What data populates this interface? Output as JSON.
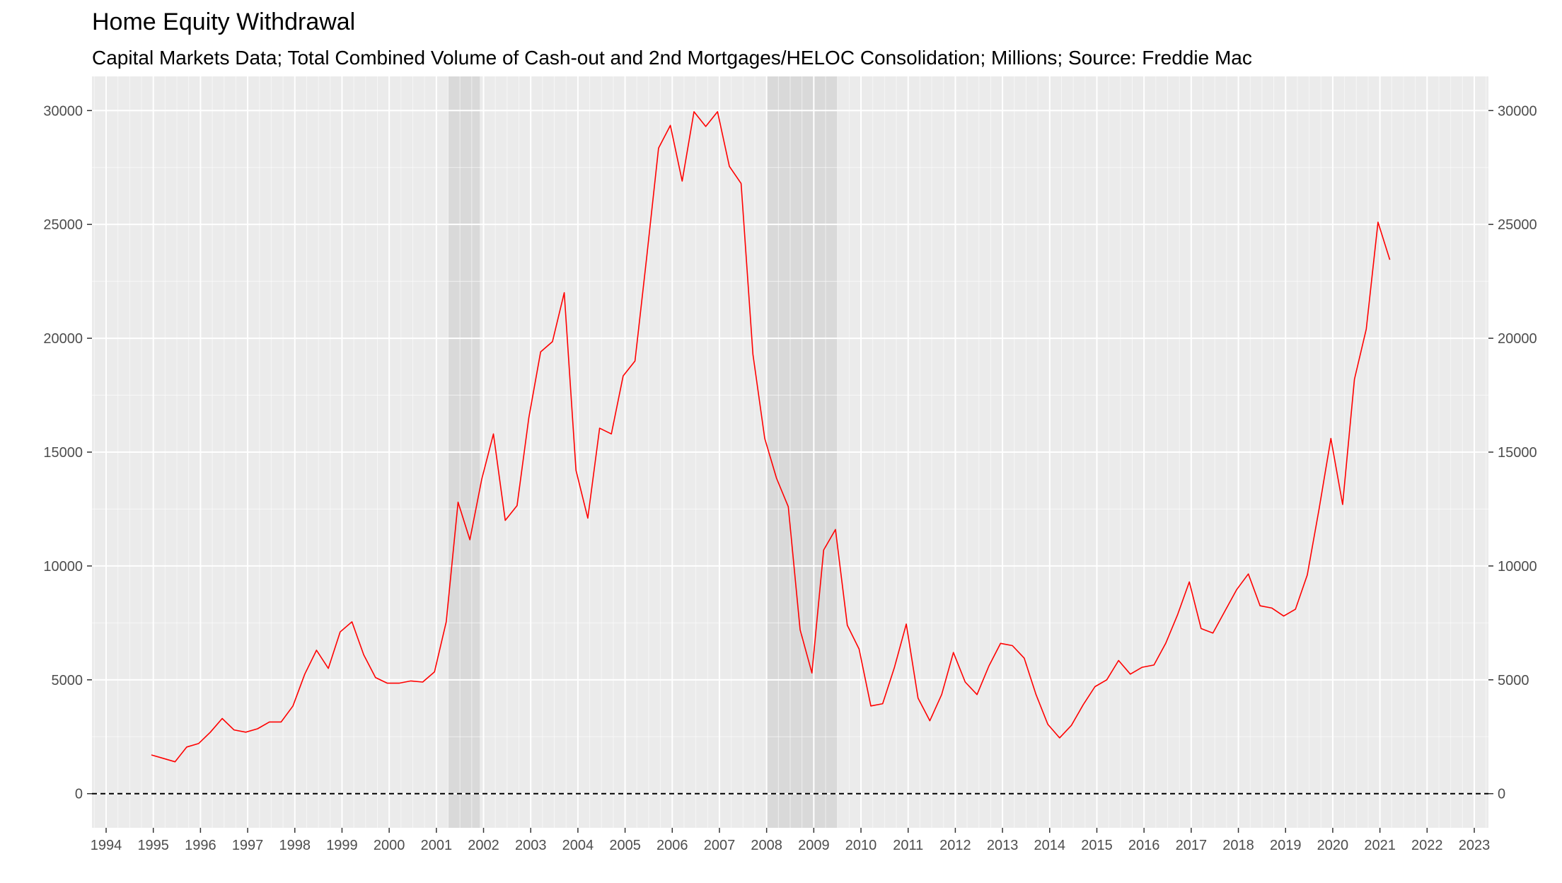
{
  "chart_data": {
    "type": "line",
    "title": "Home Equity Withdrawal",
    "subtitle": "Capital Markets Data; Total Combined Volume of Cash-out and 2nd Mortgages/HELOC Consolidation; Millions; Source: Freddie Mac",
    "xlabel": "",
    "ylabel": "",
    "xlim": [
      1993.7,
      2023.3
    ],
    "ylim": [
      -1500,
      31500
    ],
    "x_ticks": [
      "1994",
      "1995",
      "1996",
      "1997",
      "1998",
      "1999",
      "2000",
      "2001",
      "2002",
      "2003",
      "2004",
      "2005",
      "2006",
      "2007",
      "2008",
      "2009",
      "2010",
      "2011",
      "2012",
      "2013",
      "2014",
      "2015",
      "2016",
      "2017",
      "2018",
      "2019",
      "2020",
      "2021",
      "2022",
      "2023"
    ],
    "y_ticks": [
      0,
      5000,
      10000,
      15000,
      20000,
      25000,
      30000
    ],
    "y_tick_labels": [
      "0",
      "5000",
      "10000",
      "15000",
      "20000",
      "25000",
      "30000"
    ],
    "secondary_y_axis": true,
    "grid": true,
    "zero_line": "dashed",
    "line_color": "#ff0000",
    "recession_color": "#d9d9d9",
    "recessions": [
      [
        2001.25,
        2001.92
      ],
      [
        2008.0,
        2009.5
      ]
    ],
    "series": [
      {
        "name": "",
        "x": [
          1994.96,
          1995.21,
          1995.46,
          1995.71,
          1995.96,
          1996.21,
          1996.46,
          1996.71,
          1996.96,
          1997.21,
          1997.46,
          1997.71,
          1997.96,
          1998.21,
          1998.46,
          1998.71,
          1998.96,
          1999.21,
          1999.46,
          1999.71,
          1999.96,
          2000.21,
          2000.46,
          2000.71,
          2000.96,
          2001.21,
          2001.46,
          2001.71,
          2001.96,
          2002.21,
          2002.46,
          2002.71,
          2002.96,
          2003.21,
          2003.46,
          2003.71,
          2003.96,
          2004.21,
          2004.46,
          2004.71,
          2004.96,
          2005.21,
          2005.46,
          2005.71,
          2005.96,
          2006.21,
          2006.46,
          2006.71,
          2006.96,
          2007.21,
          2007.46,
          2007.71,
          2007.96,
          2008.21,
          2008.46,
          2008.71,
          2008.96,
          2009.21,
          2009.46,
          2009.71,
          2009.96,
          2010.21,
          2010.46,
          2010.71,
          2010.96,
          2011.21,
          2011.46,
          2011.71,
          2011.96,
          2012.21,
          2012.46,
          2012.71,
          2012.96,
          2013.21,
          2013.46,
          2013.71,
          2013.96,
          2014.21,
          2014.46,
          2014.71,
          2014.96,
          2015.21,
          2015.46,
          2015.71,
          2015.96,
          2016.21,
          2016.46,
          2016.71,
          2016.96,
          2017.21,
          2017.46,
          2017.71,
          2017.96,
          2018.21,
          2018.46,
          2018.71,
          2018.96,
          2019.21,
          2019.46,
          2019.71,
          2019.96,
          2020.21,
          2020.46,
          2020.71,
          2020.96,
          2021.21
        ],
        "values": [
          1700,
          1550,
          1400,
          2050,
          2200,
          2700,
          3300,
          2800,
          2700,
          2850,
          3150,
          3150,
          3850,
          5250,
          6300,
          5500,
          7100,
          7550,
          6100,
          5100,
          4850,
          4850,
          4950,
          4900,
          5350,
          7550,
          12800,
          11150,
          13800,
          15800,
          12000,
          12650,
          16500,
          19400,
          19850,
          22000,
          14200,
          12100,
          16050,
          15800,
          18350,
          19000,
          23600,
          28350,
          29350,
          26900,
          29950,
          29300,
          29950,
          27550,
          26800,
          19300,
          15600,
          13850,
          12600,
          7200,
          5300,
          10700,
          11600,
          7400,
          6350,
          3850,
          3950,
          5550,
          7450,
          4200,
          3200,
          4350,
          6200,
          4900,
          4350,
          5600,
          6600,
          6500,
          5950,
          4350,
          3050,
          2450,
          3000,
          3900,
          4700,
          5000,
          5850,
          5250,
          5550,
          5650,
          6600,
          7850,
          9300,
          7250,
          7050,
          8000,
          8950,
          9650,
          8250,
          8150,
          7800,
          8100,
          9600,
          12500,
          15600,
          12700,
          18200,
          20400,
          25100,
          23450
        ]
      }
    ]
  }
}
